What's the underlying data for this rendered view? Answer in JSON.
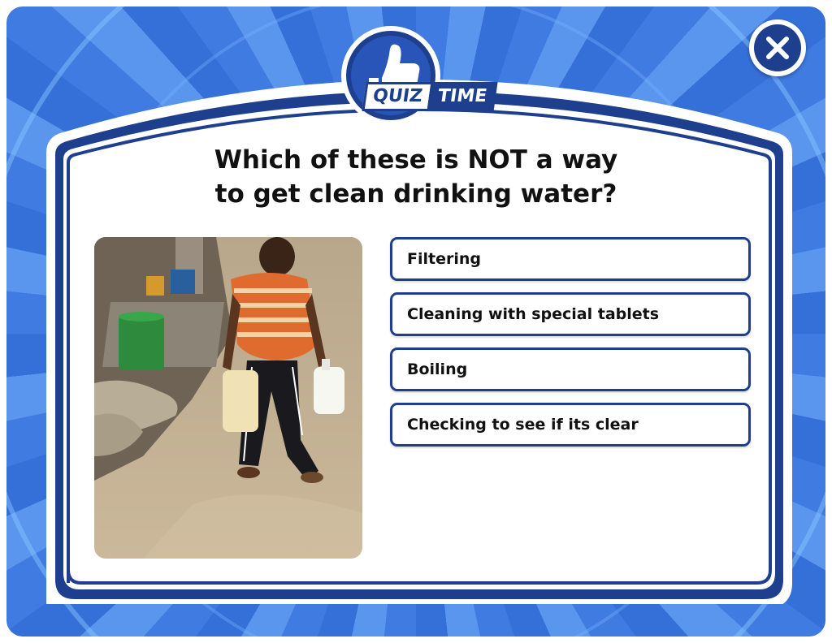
{
  "badge": {
    "quiz_label": "QUIZ",
    "time_label": "TIME",
    "icon": "thumbs-up-icon"
  },
  "close_button": {
    "icon": "close-icon"
  },
  "question": {
    "line1": "Which of these is NOT a way",
    "line2": "to get clean drinking water?"
  },
  "photo": {
    "description_icon": "photo-child-carrying-water-jugs"
  },
  "answers": [
    {
      "label": "Filtering"
    },
    {
      "label": "Cleaning with special tablets"
    },
    {
      "label": "Boiling"
    },
    {
      "label": "Checking to see if its clear"
    }
  ],
  "colors": {
    "navy": "#1d3f8e",
    "background_blue": "#3f7be0",
    "card": "#ffffff"
  }
}
